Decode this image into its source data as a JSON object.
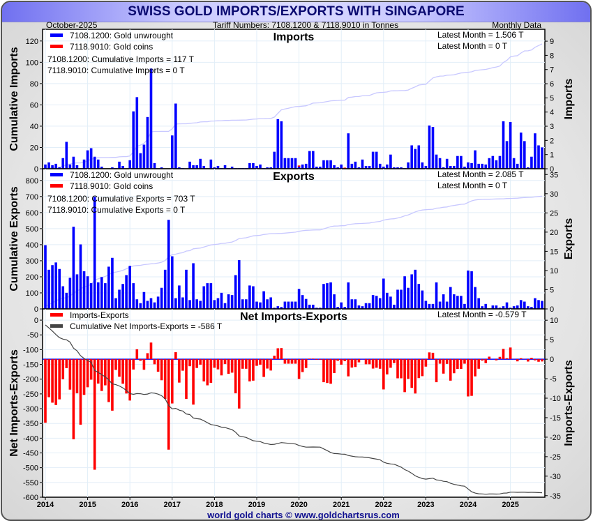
{
  "header": {
    "title": "SWISS GOLD IMPORTS/EXPORTS WITH SINGAPORE",
    "date": "October-2025",
    "subtitle": "Tariff Numbers: 7108.1200 & 7118.9010 in Tonnes",
    "frequency": "Monthly Data"
  },
  "footer": "world gold charts © www.goldchartsrus.com",
  "colors": {
    "unwrought": "#0000ff",
    "coins": "#ff0000",
    "cum_imports": "#c8c8ff",
    "net_bar": "#ff0000",
    "cum_net": "#444444",
    "grid": "#e2eef8",
    "title_text": "#0a0a70"
  },
  "chart_data": [
    {
      "type": "bar",
      "title": "Imports",
      "ylabel_left": "Cumulative Imports",
      "ylabel_right": "Imports",
      "ylim_left": [
        0,
        131
      ],
      "ylim_right": [
        0,
        9.84
      ],
      "yticks_left": [
        0,
        20,
        40,
        60,
        80,
        100,
        120
      ],
      "yticks_right": [
        0,
        1,
        2,
        3,
        4,
        5,
        6,
        7,
        8,
        9
      ],
      "legend": [
        "7108.1200: Gold unwrought",
        "7118.9010: Gold coins"
      ],
      "cumulative_text": [
        "7108.1200: Cumulative Imports = 117 T",
        "7118.9010: Cumulative Imports = 0 T"
      ],
      "latest_text": [
        "Latest Month = 1.506 T",
        "Latest Month = 0 T"
      ],
      "start_month": "2014-01",
      "unwrought": [
        0.3,
        0.45,
        0.25,
        0.35,
        0.1,
        0.75,
        1.9,
        0.3,
        0.85,
        0.25,
        0,
        0.65,
        1.3,
        1.45,
        0.85,
        0.65,
        0.15,
        0,
        0,
        0.1,
        0.05,
        0.5,
        0.2,
        0,
        0.6,
        4.05,
        5.05,
        1.1,
        1.7,
        3.65,
        7.07,
        0.4,
        0,
        0.1,
        0,
        0,
        2.35,
        4.6,
        0.1,
        0.05,
        0,
        0.5,
        0.25,
        0.25,
        0.7,
        0.2,
        0,
        0.65,
        0.1,
        0.2,
        0.05,
        0.25,
        0.05,
        0.15,
        0.05,
        0.05,
        0.05,
        0.05,
        0.4,
        0.4,
        0.2,
        0.3,
        0.05,
        0.1,
        0.1,
        1.2,
        3.5,
        3.35,
        0.75,
        0.75,
        0.75,
        0.75,
        0.15,
        0.3,
        0.35,
        1.25,
        1.25,
        0.15,
        0.15,
        0.6,
        0.6,
        0.6,
        0.25,
        0.1,
        0.3,
        0,
        2.5,
        0.35,
        0.5,
        0.1,
        0.65,
        0.2,
        0.2,
        1.2,
        1.2,
        0.35,
        0.15,
        0.3,
        1.0,
        0.1,
        0.1,
        0.1,
        0.05,
        0.45,
        1.65,
        1.4,
        1.65,
        0.45,
        0.2,
        3.05,
        2.95,
        1.0,
        0.75,
        0.1,
        0.7,
        0.2,
        0.2,
        0.9,
        0.9,
        0.15,
        0.45,
        0.4,
        1.3,
        0.35,
        0.35,
        0.3,
        0.75,
        0.9,
        0.6,
        0.9,
        3.35,
        1.95,
        3.3,
        0.75,
        0.35,
        2.55,
        1.95,
        0.1,
        0.85,
        2.5,
        1.65,
        1.506
      ],
      "coins": [
        {
          "month": "2020-01",
          "value": 0.08
        },
        {
          "month": "2021-02",
          "value": 0.08
        }
      ]
    },
    {
      "type": "bar",
      "title": "Exports",
      "ylabel_left": "Cumulative Exports",
      "ylabel_right": "Exports",
      "ylim_left": [
        0,
        873
      ],
      "ylim_right": [
        0,
        36.5
      ],
      "yticks_left": [
        0,
        100,
        200,
        300,
        400,
        500,
        600,
        700,
        800
      ],
      "yticks_right": [
        0,
        5,
        10,
        15,
        20,
        25,
        30,
        35
      ],
      "legend": [
        "7108.1200: Gold unwrought",
        "7118.9010: Gold coins"
      ],
      "cumulative_text": [
        "7108.1200: Cumulative Exports = 703 T",
        "7118.9010: Cumulative Exports = 0 T"
      ],
      "latest_text": [
        "Latest Month = 2.085 T",
        "Latest Month = 0 T"
      ],
      "start_month": "2014-01",
      "unwrought": [
        16.6,
        10.2,
        11.4,
        12.1,
        10.4,
        5.9,
        4.2,
        8.1,
        21.4,
        9.0,
        16.8,
        9.8,
        8.5,
        6.7,
        29.2,
        6.9,
        8.3,
        6.7,
        11.0,
        13.3,
        2.8,
        5.0,
        6.5,
        8.8,
        11.2,
        6.7,
        2.5,
        1.5,
        4.4,
        2.1,
        2.8,
        1.7,
        3.2,
        5.5,
        10.2,
        23.2,
        13.7,
        2.8,
        6.1,
        3.0,
        10.2,
        2.3,
        11.9,
        2.5,
        2.1,
        5.9,
        6.7,
        6.7,
        2.3,
        2.8,
        4.2,
        1.5,
        3.8,
        3.6,
        8.8,
        12.7,
        2.5,
        2.5,
        6.1,
        5.9,
        1.9,
        1.7,
        4.6,
        2.5,
        3.0,
        0.3,
        0.7,
        0.5,
        1.9,
        1.9,
        1.9,
        1.9,
        5.2,
        3.6,
        2.6,
        1.1,
        1.1,
        0.3,
        0.3,
        6.5,
        6.7,
        6.9,
        3.8,
        0.5,
        1.7,
        0.5,
        6.9,
        2.5,
        2.5,
        0.9,
        0.7,
        1.5,
        1.5,
        3.6,
        3.4,
        2.8,
        7.9,
        4.2,
        3.2,
        1.1,
        5.0,
        5.0,
        8.5,
        5.5,
        9.0,
        10.2,
        6.5,
        4.8,
        2.1,
        1.3,
        1.3,
        6.9,
        1.9,
        3.8,
        1.9,
        5.7,
        3.8,
        3.4,
        3.4,
        1.3,
        10.0,
        9.8,
        5.7,
        2.8,
        0.7,
        1.3,
        0.1,
        0.9,
        0.9,
        0.3,
        0.7,
        1.7,
        0.3,
        0.7,
        0.9,
        2.3,
        1.9,
        0.7,
        0.5,
        2.8,
        2.3,
        2.085
      ],
      "coins": []
    },
    {
      "type": "bar",
      "title": "Net Imports-Exports",
      "ylabel_left": "Net Imports-Exports",
      "ylabel_right": "Imports-Exports",
      "ylim_left": [
        -600,
        38
      ],
      "ylim_right": [
        -35.4,
        12.9
      ],
      "yticks_left": [
        0,
        -50,
        -100,
        -150,
        -200,
        -250,
        -300,
        -350,
        -400,
        -450,
        -500,
        -550,
        -600
      ],
      "yticks_right": [
        10,
        5,
        0,
        -5,
        -10,
        -15,
        -20,
        -25,
        -30,
        -35
      ],
      "legend": [
        "Imports-Exports",
        "Cumulative Net Imports-Exports = -586 T"
      ],
      "latest_text": [
        "Latest Month = -0.579 T"
      ],
      "derived": "monthly imports minus exports; cumulative sum"
    }
  ],
  "x_axis": {
    "ticks": [
      "2014",
      "2015",
      "2016",
      "2017",
      "2018",
      "2019",
      "2020",
      "2021",
      "2022",
      "2023",
      "2024",
      "2025"
    ]
  }
}
